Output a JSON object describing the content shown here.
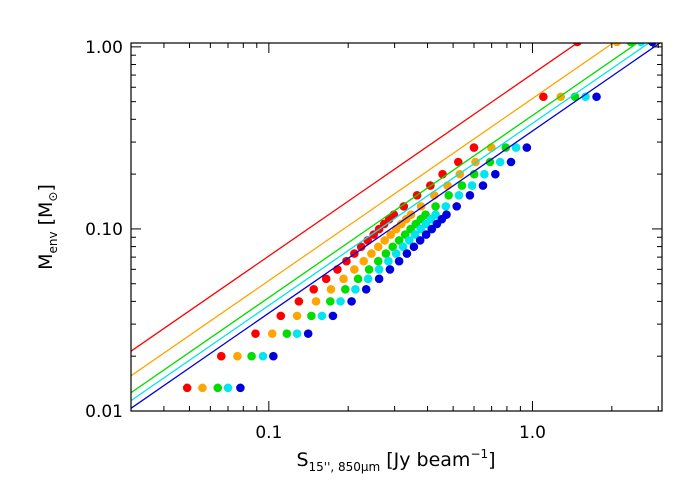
{
  "chart_data": {
    "type": "scatter",
    "title": "",
    "xlabel": {
      "main": "S",
      "subscript": "15'', 850μm",
      "unit": "[Jy beam",
      "unit_superscript": "−1",
      "unit_close": "]"
    },
    "ylabel": {
      "main": "M",
      "subscript": "env",
      "unit": "[M",
      "unit_subscript": "⊙",
      "unit_close": "]"
    },
    "xscale": "log",
    "yscale": "log",
    "xlim": [
      0.03,
      3.1
    ],
    "ylim": [
      0.01,
      1.05
    ],
    "x_ticks": [
      {
        "value": 0.1,
        "label": "0.1"
      },
      {
        "value": 1.0,
        "label": "1.0"
      }
    ],
    "y_ticks": [
      {
        "value": 0.01,
        "label": "0.01"
      },
      {
        "value": 0.1,
        "label": "0.10"
      },
      {
        "value": 1.0,
        "label": "1.00"
      }
    ],
    "grid": false,
    "legend": "none",
    "series": [
      {
        "color": "#ff0000",
        "line": {
          "slope": 1.0,
          "y_at_x1": 0.71
        },
        "x": [
          0.049,
          0.066,
          0.089,
          0.111,
          0.13,
          0.148,
          0.165,
          0.182,
          0.197,
          0.211,
          0.224,
          0.237,
          0.25,
          0.262,
          0.274,
          0.286,
          0.298,
          0.325,
          0.365,
          0.41,
          0.456,
          0.523,
          0.6,
          1.1,
          1.48
        ],
        "y": [
          0.0134,
          0.02,
          0.0266,
          0.0333,
          0.04,
          0.0466,
          0.0532,
          0.0599,
          0.0665,
          0.0732,
          0.0798,
          0.0865,
          0.0931,
          0.0998,
          0.1065,
          0.1131,
          0.1198,
          0.133,
          0.153,
          0.173,
          0.1998,
          0.2331,
          0.2797,
          0.532,
          1.064
        ]
      },
      {
        "color": "#ffa500",
        "line": {
          "slope": 1.0,
          "y_at_x1": 0.52
        },
        "x": [
          0.056,
          0.076,
          0.103,
          0.128,
          0.151,
          0.172,
          0.192,
          0.211,
          0.229,
          0.245,
          0.26,
          0.275,
          0.29,
          0.304,
          0.318,
          0.332,
          0.346,
          0.378,
          0.424,
          0.476,
          0.53,
          0.608,
          0.698,
          1.28,
          2.09
        ],
        "y": [
          0.0134,
          0.02,
          0.0266,
          0.0333,
          0.04,
          0.0466,
          0.0532,
          0.0599,
          0.0665,
          0.0732,
          0.0798,
          0.0865,
          0.0931,
          0.0998,
          0.1065,
          0.1131,
          0.1198,
          0.133,
          0.153,
          0.173,
          0.1998,
          0.2331,
          0.2797,
          0.532,
          1.064
        ]
      },
      {
        "color": "#00dd00",
        "line": {
          "slope": 1.0,
          "y_at_x1": 0.42
        },
        "x": [
          0.064,
          0.086,
          0.117,
          0.145,
          0.171,
          0.195,
          0.218,
          0.24,
          0.26,
          0.278,
          0.295,
          0.312,
          0.329,
          0.345,
          0.361,
          0.377,
          0.393,
          0.429,
          0.481,
          0.54,
          0.601,
          0.69,
          0.792,
          1.45,
          2.36
        ],
        "y": [
          0.0134,
          0.02,
          0.0266,
          0.0333,
          0.04,
          0.0466,
          0.0532,
          0.0599,
          0.0665,
          0.0732,
          0.0798,
          0.0865,
          0.0931,
          0.0998,
          0.1065,
          0.1131,
          0.1198,
          0.133,
          0.153,
          0.173,
          0.1998,
          0.2331,
          0.2797,
          0.532,
          1.064
        ]
      },
      {
        "color": "#00e5ee",
        "line": {
          "slope": 1.0,
          "y_at_x1": 0.38
        },
        "x": [
          0.07,
          0.095,
          0.128,
          0.159,
          0.187,
          0.213,
          0.238,
          0.262,
          0.284,
          0.304,
          0.323,
          0.341,
          0.359,
          0.377,
          0.395,
          0.412,
          0.429,
          0.469,
          0.526,
          0.59,
          0.657,
          0.754,
          0.866,
          1.59,
          2.58
        ],
        "y": [
          0.0134,
          0.02,
          0.0266,
          0.0333,
          0.04,
          0.0466,
          0.0532,
          0.0599,
          0.0665,
          0.0732,
          0.0798,
          0.0865,
          0.0931,
          0.0998,
          0.1065,
          0.1131,
          0.1198,
          0.133,
          0.153,
          0.173,
          0.1998,
          0.2331,
          0.2797,
          0.532,
          1.064
        ]
      },
      {
        "color": "#0000dd",
        "line": {
          "slope": 1.0,
          "y_at_x1": 0.345
        },
        "x": [
          0.078,
          0.104,
          0.141,
          0.175,
          0.206,
          0.234,
          0.262,
          0.288,
          0.312,
          0.334,
          0.355,
          0.375,
          0.395,
          0.415,
          0.434,
          0.453,
          0.472,
          0.516,
          0.579,
          0.649,
          0.723,
          0.829,
          0.952,
          1.75,
          2.85
        ],
        "y": [
          0.0134,
          0.02,
          0.0266,
          0.0333,
          0.04,
          0.0466,
          0.0532,
          0.0599,
          0.0665,
          0.0732,
          0.0798,
          0.0865,
          0.0931,
          0.0998,
          0.1065,
          0.1131,
          0.1198,
          0.133,
          0.153,
          0.173,
          0.1998,
          0.2331,
          0.2797,
          0.532,
          1.064
        ]
      }
    ]
  }
}
